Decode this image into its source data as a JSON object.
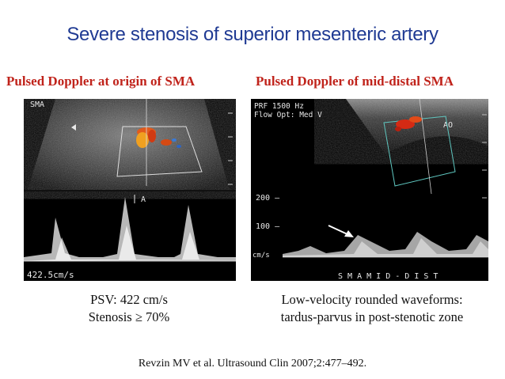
{
  "title": "Severe stenosis of superior mesenteric artery",
  "left": {
    "heading": "Pulsed Doppler at origin of SMA",
    "image_labels": {
      "sma": "SMA",
      "marker": "A",
      "velocity": "422.5cm/s"
    },
    "caption_line1": "PSV: 422 cm/s",
    "caption_line2": "Stenosis ≥ 70%"
  },
  "right": {
    "heading": "Pulsed Doppler of mid-distal SMA",
    "image_labels": {
      "prf": "PRF 1500  Hz",
      "flow": "Flow Opt: Med V",
      "ao": "AO",
      "tick_200": "200 –",
      "tick_100": "100 –",
      "unit": "cm/s",
      "scan": "S M A   M I D - D I S T"
    },
    "caption_line1": "Low-velocity rounded waveforms:",
    "caption_line2": "tardus-parvus in post-stenotic zone"
  },
  "citation": "Revzin MV et al. Ultrasound Clin 2007;2:477–492.",
  "colors": {
    "title": "#1f3a93",
    "heading": "#c0231b",
    "color_box": "#5fc7c0"
  }
}
